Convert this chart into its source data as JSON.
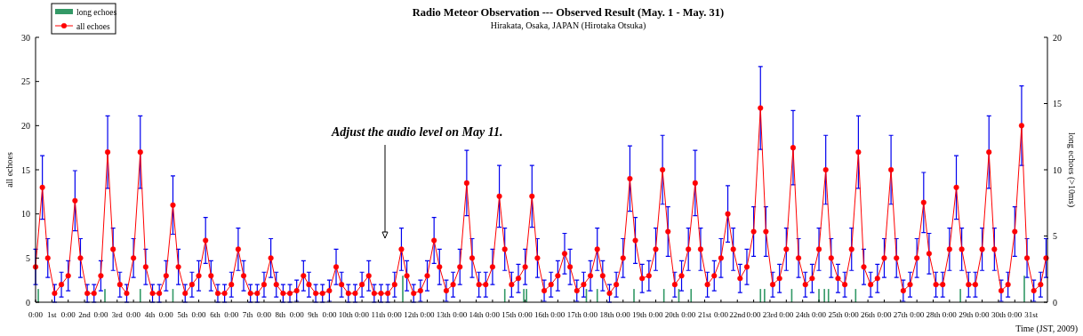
{
  "chart_data": {
    "type": "line",
    "title": "Radio Meteor Observation --- Observed Result (May. 1 - May. 31)",
    "subtitle": "Hirakata, Osaka, JAPAN (Hirotaka Otsuka)",
    "xlabel": "Time (JST, 2009)",
    "ylabel": "all echoes",
    "y2label": "long echoes (>10ms)",
    "annotations": [
      "Adjust the audio level on May 11."
    ],
    "xlim": [
      "2009-05-01T00:00",
      "2009-06-01T00:00"
    ],
    "xticks": [
      {
        "value": "2009-05-01T00:00",
        "label": "0:00"
      },
      {
        "value": "2009-05-01T12:00",
        "label": "1st"
      },
      {
        "value": "2009-05-02T00:00",
        "label": "0:00"
      },
      {
        "value": "2009-05-02T12:00",
        "label": "2nd"
      },
      {
        "value": "2009-05-03T00:00",
        "label": "0:00"
      },
      {
        "value": "2009-05-03T12:00",
        "label": "3rd"
      },
      {
        "value": "2009-05-04T00:00",
        "label": "0:00"
      },
      {
        "value": "2009-05-04T12:00",
        "label": "4th"
      },
      {
        "value": "2009-05-05T00:00",
        "label": "0:00"
      },
      {
        "value": "2009-05-05T12:00",
        "label": "5th"
      },
      {
        "value": "2009-05-06T00:00",
        "label": "0:00"
      },
      {
        "value": "2009-05-06T12:00",
        "label": "6th"
      },
      {
        "value": "2009-05-07T00:00",
        "label": "0:00"
      },
      {
        "value": "2009-05-07T12:00",
        "label": "7th"
      },
      {
        "value": "2009-05-08T00:00",
        "label": "0:00"
      },
      {
        "value": "2009-05-08T12:00",
        "label": "8th"
      },
      {
        "value": "2009-05-09T00:00",
        "label": "0:00"
      },
      {
        "value": "2009-05-09T12:00",
        "label": "9th"
      },
      {
        "value": "2009-05-10T00:00",
        "label": "0:00"
      },
      {
        "value": "2009-05-10T12:00",
        "label": "10th"
      },
      {
        "value": "2009-05-11T00:00",
        "label": "0:00"
      },
      {
        "value": "2009-05-11T12:00",
        "label": "11th"
      },
      {
        "value": "2009-05-12T00:00",
        "label": "0:00"
      },
      {
        "value": "2009-05-12T12:00",
        "label": "12th"
      },
      {
        "value": "2009-05-13T00:00",
        "label": "0:00"
      },
      {
        "value": "2009-05-13T12:00",
        "label": "13th"
      },
      {
        "value": "2009-05-14T00:00",
        "label": "0:00"
      },
      {
        "value": "2009-05-14T12:00",
        "label": "14th"
      },
      {
        "value": "2009-05-15T00:00",
        "label": "0:00"
      },
      {
        "value": "2009-05-15T12:00",
        "label": "15th"
      },
      {
        "value": "2009-05-16T00:00",
        "label": "0:00"
      },
      {
        "value": "2009-05-16T12:00",
        "label": "16th"
      },
      {
        "value": "2009-05-17T00:00",
        "label": "0:00"
      },
      {
        "value": "2009-05-17T12:00",
        "label": "17th"
      },
      {
        "value": "2009-05-18T00:00",
        "label": "0:00"
      },
      {
        "value": "2009-05-18T12:00",
        "label": "18th"
      },
      {
        "value": "2009-05-19T00:00",
        "label": "0:00"
      },
      {
        "value": "2009-05-19T12:00",
        "label": "19th"
      },
      {
        "value": "2009-05-20T00:00",
        "label": "0:00"
      },
      {
        "value": "2009-05-20T12:00",
        "label": "20th"
      },
      {
        "value": "2009-05-21T00:00",
        "label": "0:00"
      },
      {
        "value": "2009-05-21T12:00",
        "label": "21st"
      },
      {
        "value": "2009-05-22T00:00",
        "label": "0:00"
      },
      {
        "value": "2009-05-22T12:00",
        "label": "22nd"
      },
      {
        "value": "2009-05-23T00:00",
        "label": "0:00"
      },
      {
        "value": "2009-05-23T12:00",
        "label": "23rd"
      },
      {
        "value": "2009-05-24T00:00",
        "label": "0:00"
      },
      {
        "value": "2009-05-24T12:00",
        "label": "24th"
      },
      {
        "value": "2009-05-25T00:00",
        "label": "0:00"
      },
      {
        "value": "2009-05-25T12:00",
        "label": "25th"
      },
      {
        "value": "2009-05-26T00:00",
        "label": "0:00"
      },
      {
        "value": "2009-05-26T12:00",
        "label": "26th"
      },
      {
        "value": "2009-05-27T00:00",
        "label": "0:00"
      },
      {
        "value": "2009-05-27T12:00",
        "label": "27th"
      },
      {
        "value": "2009-05-28T00:00",
        "label": "0:00"
      },
      {
        "value": "2009-05-28T12:00",
        "label": "28th"
      },
      {
        "value": "2009-05-29T00:00",
        "label": "0:00"
      },
      {
        "value": "2009-05-29T12:00",
        "label": "29th"
      },
      {
        "value": "2009-05-30T00:00",
        "label": "0:00"
      },
      {
        "value": "2009-05-30T12:00",
        "label": "30th"
      },
      {
        "value": "2009-05-31T00:00",
        "label": "0:00"
      },
      {
        "value": "2009-05-31T12:00",
        "label": "31st"
      }
    ],
    "ylim": [
      0,
      30
    ],
    "yticks": [
      0,
      5,
      10,
      15,
      20,
      25,
      30
    ],
    "y2lim": [
      0,
      20
    ],
    "y2ticks": [
      0,
      5,
      10,
      15,
      20
    ],
    "legend": "top left",
    "marker": "circle",
    "line_style": "solid",
    "series": [
      {
        "name": "long echoes",
        "type": "bar",
        "axis": "y2",
        "color": "#339966",
        "x": [
          "2009-05-01T02:00",
          "2009-05-03T03:00",
          "2009-05-04T05:00",
          "2009-05-05T05:00",
          "2009-05-12T06:00",
          "2009-05-15T09:00",
          "2009-05-15T23:00",
          "2009-05-16T01:00",
          "2009-05-17T21:00",
          "2009-05-18T05:00",
          "2009-05-19T08:00",
          "2009-05-20T06:00",
          "2009-05-20T17:00",
          "2009-05-21T02:00",
          "2009-05-23T05:00",
          "2009-05-23T08:00",
          "2009-05-24T04:00",
          "2009-05-25T00:00",
          "2009-05-25T04:00",
          "2009-05-25T07:00",
          "2009-05-26T03:00",
          "2009-05-29T08:00",
          "2009-05-31T07:00"
        ],
        "values": [
          1,
          1,
          1,
          1,
          2,
          1,
          1,
          1,
          1,
          1,
          1,
          1,
          1,
          1,
          1,
          1,
          1,
          1,
          1,
          1,
          1,
          1,
          2
        ]
      },
      {
        "name": "all echoes",
        "color": "#ff0000",
        "x": [
          "2009-05-01T00:00",
          "2009-05-01T05:00",
          "2009-05-01T09:00",
          "2009-05-01T14:00",
          "2009-05-01T19:00",
          "2009-05-02T00:00",
          "2009-05-02T05:00",
          "2009-05-02T09:00",
          "2009-05-02T14:00",
          "2009-05-02T19:00",
          "2009-05-03T00:00",
          "2009-05-03T05:00",
          "2009-05-03T09:00",
          "2009-05-03T14:00",
          "2009-05-03T19:00",
          "2009-05-04T00:00",
          "2009-05-04T05:00",
          "2009-05-04T09:00",
          "2009-05-04T14:00",
          "2009-05-04T19:00",
          "2009-05-05T00:00",
          "2009-05-05T05:00",
          "2009-05-05T09:00",
          "2009-05-05T14:00",
          "2009-05-05T19:00",
          "2009-05-06T00:00",
          "2009-05-06T05:00",
          "2009-05-06T09:00",
          "2009-05-06T14:00",
          "2009-05-06T19:00",
          "2009-05-07T00:00",
          "2009-05-07T05:00",
          "2009-05-07T09:00",
          "2009-05-07T14:00",
          "2009-05-07T19:00",
          "2009-05-08T00:00",
          "2009-05-08T05:00",
          "2009-05-08T09:00",
          "2009-05-08T14:00",
          "2009-05-08T19:00",
          "2009-05-09T00:00",
          "2009-05-09T05:00",
          "2009-05-09T09:00",
          "2009-05-09T14:00",
          "2009-05-09T19:00",
          "2009-05-10T00:00",
          "2009-05-10T05:00",
          "2009-05-10T09:00",
          "2009-05-10T14:00",
          "2009-05-10T19:00",
          "2009-05-11T00:00",
          "2009-05-11T05:00",
          "2009-05-11T09:00",
          "2009-05-11T14:00",
          "2009-05-11T19:00",
          "2009-05-12T00:00",
          "2009-05-12T05:00",
          "2009-05-12T09:00",
          "2009-05-12T14:00",
          "2009-05-12T19:00",
          "2009-05-13T00:00",
          "2009-05-13T05:00",
          "2009-05-13T09:00",
          "2009-05-13T14:00",
          "2009-05-13T19:00",
          "2009-05-14T00:00",
          "2009-05-14T05:00",
          "2009-05-14T09:00",
          "2009-05-14T14:00",
          "2009-05-14T19:00",
          "2009-05-15T00:00",
          "2009-05-15T05:00",
          "2009-05-15T09:00",
          "2009-05-15T14:00",
          "2009-05-15T19:00",
          "2009-05-16T00:00",
          "2009-05-16T05:00",
          "2009-05-16T09:00",
          "2009-05-16T14:00",
          "2009-05-16T19:00",
          "2009-05-17T00:00",
          "2009-05-17T05:00",
          "2009-05-17T09:00",
          "2009-05-17T14:00",
          "2009-05-17T19:00",
          "2009-05-18T00:00",
          "2009-05-18T05:00",
          "2009-05-18T09:00",
          "2009-05-18T14:00",
          "2009-05-18T19:00",
          "2009-05-19T00:00",
          "2009-05-19T05:00",
          "2009-05-19T09:00",
          "2009-05-19T14:00",
          "2009-05-19T19:00",
          "2009-05-20T00:00",
          "2009-05-20T05:00",
          "2009-05-20T09:00",
          "2009-05-20T14:00",
          "2009-05-20T19:00",
          "2009-05-21T00:00",
          "2009-05-21T05:00",
          "2009-05-21T09:00",
          "2009-05-21T14:00",
          "2009-05-21T19:00",
          "2009-05-22T00:00",
          "2009-05-22T05:00",
          "2009-05-22T09:00",
          "2009-05-22T14:00",
          "2009-05-22T19:00",
          "2009-05-23T00:00",
          "2009-05-23T05:00",
          "2009-05-23T09:00",
          "2009-05-23T14:00",
          "2009-05-23T19:00",
          "2009-05-24T00:00",
          "2009-05-24T05:00",
          "2009-05-24T09:00",
          "2009-05-24T14:00",
          "2009-05-24T19:00",
          "2009-05-25T00:00",
          "2009-05-25T05:00",
          "2009-05-25T09:00",
          "2009-05-25T14:00",
          "2009-05-25T19:00",
          "2009-05-26T00:00",
          "2009-05-26T05:00",
          "2009-05-26T09:00",
          "2009-05-26T14:00",
          "2009-05-26T19:00",
          "2009-05-27T00:00",
          "2009-05-27T05:00",
          "2009-05-27T09:00",
          "2009-05-27T14:00",
          "2009-05-27T19:00",
          "2009-05-28T00:00",
          "2009-05-28T05:00",
          "2009-05-28T09:00",
          "2009-05-28T14:00",
          "2009-05-28T19:00",
          "2009-05-29T00:00",
          "2009-05-29T05:00",
          "2009-05-29T09:00",
          "2009-05-29T14:00",
          "2009-05-29T19:00",
          "2009-05-30T00:00",
          "2009-05-30T05:00",
          "2009-05-30T09:00",
          "2009-05-30T14:00",
          "2009-05-30T19:00",
          "2009-05-31T00:00",
          "2009-05-31T05:00",
          "2009-05-31T09:00",
          "2009-05-31T14:00",
          "2009-05-31T19:00",
          "2009-05-31T23:00"
        ],
        "values": [
          4,
          13,
          5,
          1,
          2,
          3,
          11.5,
          5,
          1,
          1,
          3,
          17,
          6,
          2,
          1,
          5,
          17,
          4,
          1,
          1,
          3,
          11,
          4,
          1,
          2,
          3,
          7,
          3,
          1,
          1,
          2,
          6,
          3,
          1,
          1,
          2,
          5,
          2,
          1,
          1,
          1.3,
          3,
          2,
          1,
          1,
          1.3,
          4,
          2,
          1,
          1,
          2,
          3,
          1,
          1,
          1,
          2,
          6,
          3,
          1,
          1.3,
          3,
          7,
          4,
          1.3,
          2,
          4,
          13.5,
          5,
          2,
          2,
          4,
          12,
          6,
          2,
          2.7,
          4,
          12,
          5,
          1.3,
          2,
          3,
          5.5,
          4,
          1.3,
          2,
          3,
          6,
          3,
          1,
          2,
          5,
          14,
          7,
          2.7,
          3,
          6,
          15,
          8,
          2,
          3,
          6,
          13.5,
          6,
          2,
          3,
          5,
          10,
          6,
          2.7,
          4,
          8,
          22,
          8,
          2,
          2.7,
          6,
          17.5,
          5,
          2,
          2.7,
          6,
          15,
          5,
          2.7,
          2,
          6,
          17,
          4,
          2,
          2.7,
          5,
          15,
          5,
          1.3,
          2,
          5,
          11.3,
          5.5,
          2,
          2,
          6,
          13,
          6,
          2,
          2,
          6,
          17,
          6,
          1.3,
          2,
          8,
          20,
          5,
          1.3,
          2,
          5
        ],
        "errors": [
          2,
          3.6,
          2.2,
          1,
          1.4,
          1.7,
          3.4,
          2.2,
          1,
          1,
          1.7,
          4.1,
          2.4,
          1.4,
          1,
          2.2,
          4.1,
          2,
          1,
          1,
          1.7,
          3.3,
          2,
          1,
          1.4,
          1.7,
          2.6,
          1.7,
          1,
          1,
          1.4,
          2.4,
          1.7,
          1,
          1,
          1.4,
          2.2,
          1.4,
          1,
          1,
          1.2,
          1.7,
          1.4,
          1,
          1,
          1.2,
          2,
          1.4,
          1,
          1,
          1.4,
          1.7,
          1,
          1,
          1,
          1.4,
          2.4,
          1.7,
          1,
          1.2,
          1.7,
          2.6,
          2,
          1.2,
          1.4,
          2,
          3.7,
          2.2,
          1.4,
          1.4,
          2,
          3.5,
          2.4,
          1.4,
          1.6,
          2,
          3.5,
          2.2,
          1.2,
          1.4,
          1.7,
          2.3,
          2,
          1.2,
          1.4,
          1.7,
          2.4,
          1.7,
          1,
          1.4,
          2.2,
          3.7,
          2.6,
          1.6,
          1.7,
          2.4,
          3.9,
          2.8,
          1.4,
          1.7,
          2.4,
          3.7,
          2.4,
          1.4,
          1.7,
          2.2,
          3.2,
          2.4,
          1.6,
          2,
          2.8,
          4.7,
          2.8,
          1.4,
          1.6,
          2.4,
          4.2,
          2.2,
          1.4,
          1.6,
          2.4,
          3.9,
          2.2,
          1.6,
          1.4,
          2.4,
          4.1,
          2,
          1.4,
          1.6,
          2.2,
          3.9,
          2.2,
          1.2,
          1.4,
          2.2,
          3.4,
          2.3,
          1.4,
          1.4,
          2.4,
          3.6,
          2.4,
          1.4,
          1.4,
          2.4,
          4.1,
          2.4,
          1.2,
          1.4,
          2.8,
          4.5,
          2.2,
          1.2,
          1.4,
          2.2
        ]
      }
    ]
  }
}
